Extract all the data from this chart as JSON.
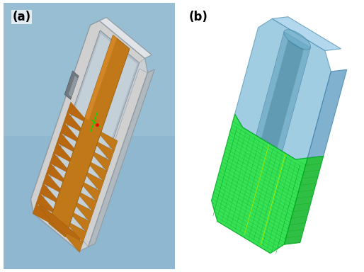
{
  "label_a": "(a)",
  "label_b": "(b)",
  "background_color": "#ffffff",
  "fig_width": 5.14,
  "fig_height": 3.84,
  "dpi": 100,
  "label_fontsize": 12,
  "label_fontweight": "bold",
  "bg_a": "#9ab8d0",
  "housing_gray_light": "#d0d0d0",
  "housing_gray_mid": "#b0b8c0",
  "housing_gray_dark": "#909aa0",
  "cavity_color": "#c8d4dc",
  "screw_orange": "#c07818",
  "screw_dark": "#9a5c0a",
  "screw_light": "#e09030",
  "thread_color": "#b86810",
  "blue_housing": "#7ab0d0",
  "blue_light": "#a0c8e4",
  "blue_dark": "#5090b8",
  "green_mesh": "#22dd44",
  "green_dark": "#00aa22",
  "green_line": "#00cc00"
}
